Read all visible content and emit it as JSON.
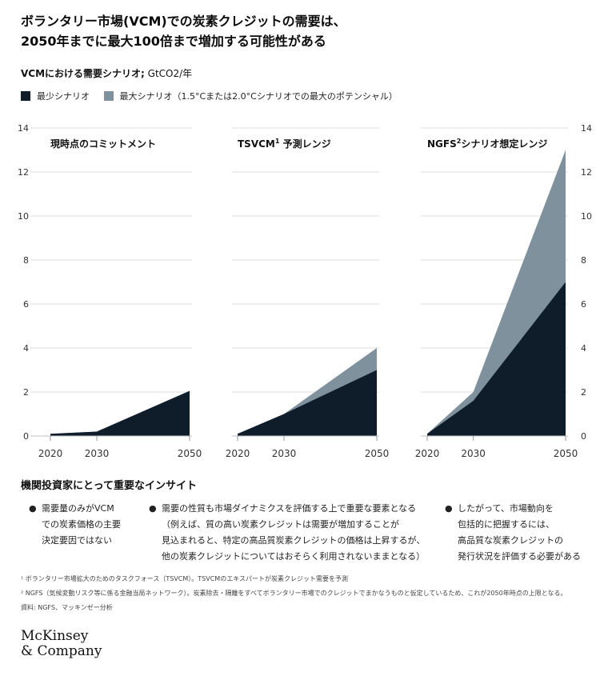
{
  "title": {
    "line1": "ボランタリー市場(VCM)での炭素クレジットの需要は、",
    "line2": "2050年までに最大100倍まで増加する可能性がある"
  },
  "subtitle": {
    "bold": "VCMにおける需要シナリオ;",
    "unit": "GtCO2/年"
  },
  "legend": {
    "min_label": "最少シナリオ",
    "max_label": "最大シナリオ（1.5°Cまたは2.0°Cシナリオでの最大のポテンシャル）",
    "min_color": "#0f1c2a",
    "max_color": "#7f919d"
  },
  "chart_data": [
    {
      "type": "area",
      "title": "現時点のコミットメント",
      "x": [
        2020,
        2030,
        2050
      ],
      "series": [
        {
          "name": "最少シナリオ",
          "values": [
            0.1,
            0.2,
            2.05
          ]
        },
        {
          "name": "最大シナリオ（1.5°Cまたは2.0°Cシナリオでの最大のポテンシャル）",
          "values": [
            0.1,
            0.2,
            2.05
          ]
        }
      ],
      "xticks": [
        "2020",
        "2030",
        "2050"
      ],
      "ylim": [
        0,
        14
      ]
    },
    {
      "type": "area",
      "title": "TSVCM",
      "title_sup": "1",
      "title_suffix": " 予測レンジ",
      "x": [
        2020,
        2030,
        2050
      ],
      "series": [
        {
          "name": "最少シナリオ",
          "values": [
            0.1,
            1.0,
            3.0
          ]
        },
        {
          "name": "最大シナリオ（1.5°Cまたは2.0°Cシナリオでの最大のポテンシャル）",
          "values": [
            0.1,
            1.0,
            4.0
          ]
        }
      ],
      "xticks": [
        "2020",
        "2030",
        "2050"
      ],
      "ylim": [
        0,
        14
      ]
    },
    {
      "type": "area",
      "title": "NGFS",
      "title_sup": "2",
      "title_suffix": "シナリオ想定レンジ",
      "x": [
        2020,
        2030,
        2050
      ],
      "series": [
        {
          "name": "最少シナリオ",
          "values": [
            0.1,
            1.6,
            7.0
          ]
        },
        {
          "name": "最大シナリオ（1.5°Cまたは2.0°Cシナリオでの最大のポテンシャル）",
          "values": [
            0.1,
            2.0,
            13.0
          ]
        }
      ],
      "xticks": [
        "2020",
        "2030",
        "2050"
      ],
      "ylim": [
        0,
        14
      ]
    }
  ],
  "yticks": [
    "0",
    "2",
    "4",
    "6",
    "8",
    "10",
    "12",
    "14"
  ],
  "insights": {
    "title": "機関投資家にとって重要なインサイト",
    "bullet": "●",
    "col1": [
      "需要量のみがVCM",
      "での炭素価格の主要",
      "決定要因ではない"
    ],
    "col2": [
      "需要の性質も市場ダイナミクスを評価する上で重要な要素となる",
      "（例えば、質の高い炭素クレジットは需要が増加することが",
      "見込まれると、特定の高品質炭素クレジットの価格は上昇するが、",
      "他の炭素クレジットについてはおそらく利用されないままとなる）"
    ],
    "col3": [
      "したがって、市場動向を",
      "包括的に把握するには、",
      "高品質な炭素クレジットの",
      "発行状況を評価する必要がある"
    ]
  },
  "footnotes": {
    "f1": "¹ ボランタリー市場拡大のためのタスクフォース（TSVCM）。TSVCMのエキスパートが炭素クレジット需要を予測",
    "f2": "² NGFS（気候変動リスク等に係る金融当局ネットワーク）。炭素除去・隔離をすべてボランタリー市場でのクレジットでまかなうものと仮定しているため、これが2050年時点の上限となる。",
    "source": "資料: NGFS、マッキンゼー分析"
  },
  "logo": {
    "line1": "McKinsey",
    "line2": "& Company"
  }
}
